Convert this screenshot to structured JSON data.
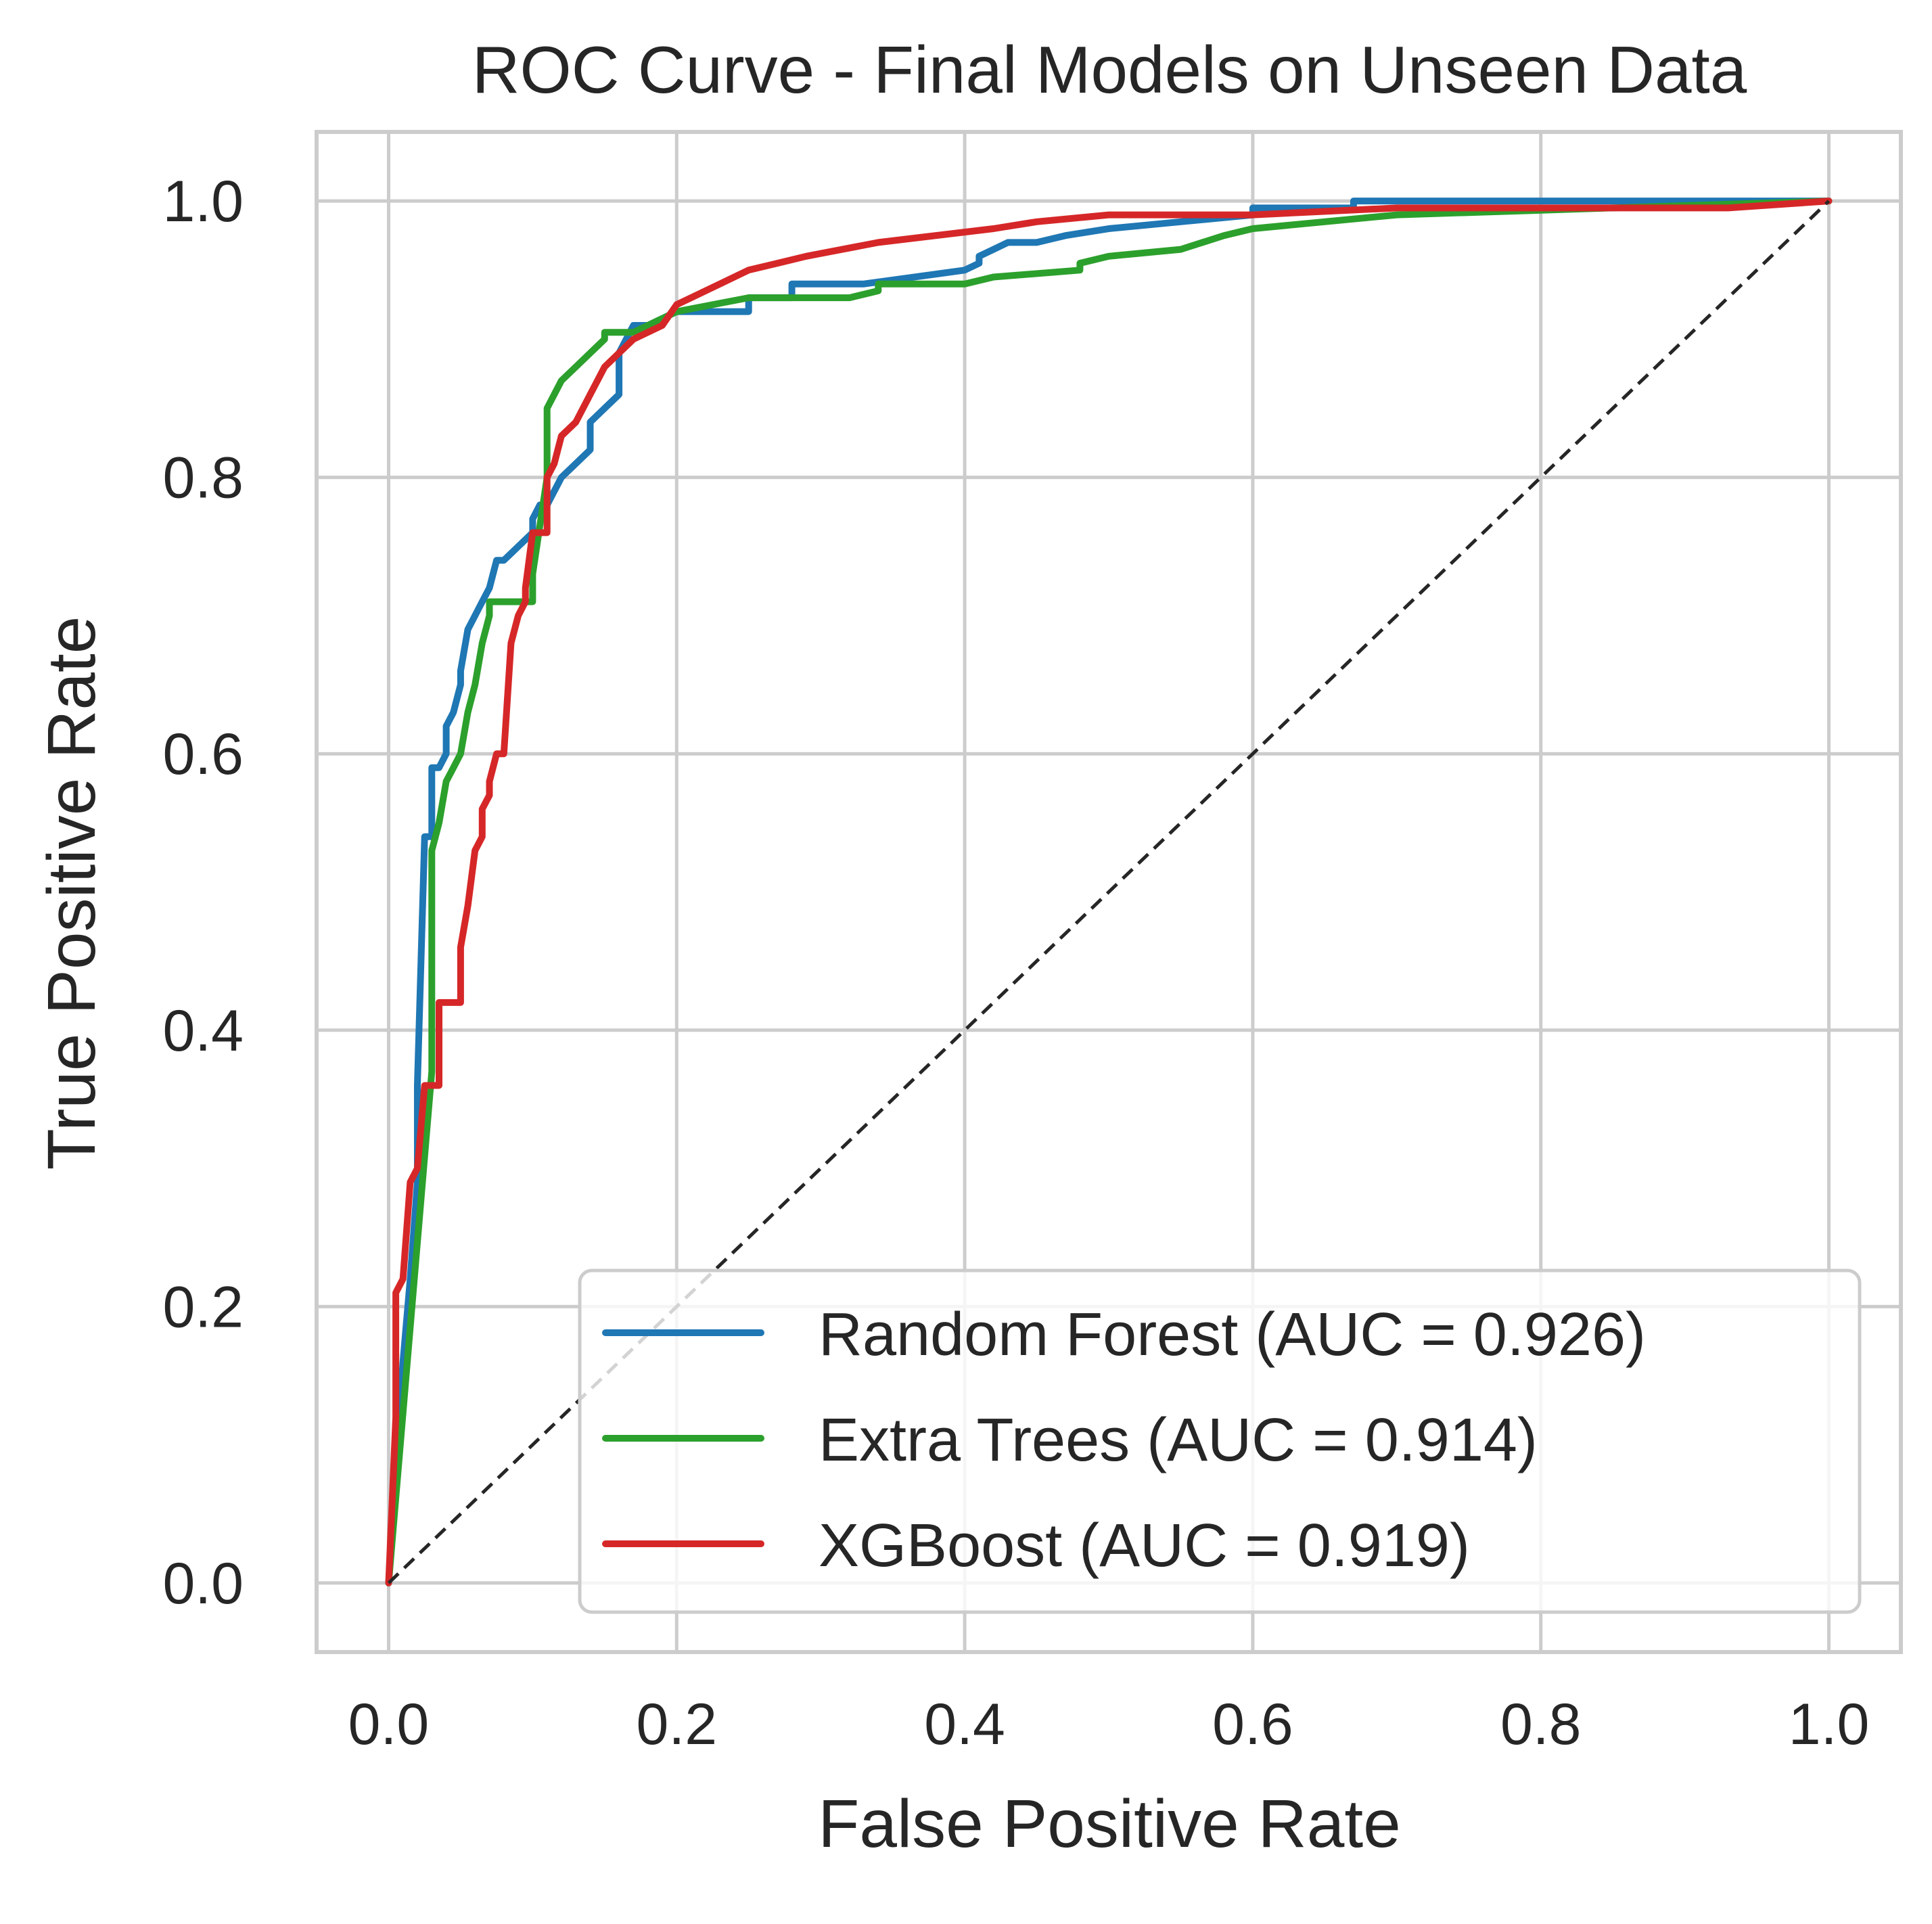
{
  "chart_data": {
    "type": "line",
    "title": "ROC Curve - Final Models on Unseen Data",
    "xlabel": "False Positive Rate",
    "ylabel": "True Positive Rate",
    "xlim": [
      -0.05,
      1.05
    ],
    "ylim": [
      -0.05,
      1.05
    ],
    "xticks": [
      0.0,
      0.2,
      0.4,
      0.6,
      0.8,
      1.0
    ],
    "yticks": [
      0.0,
      0.2,
      0.4,
      0.6,
      0.8,
      1.0
    ],
    "xtick_labels": [
      "0.0",
      "0.2",
      "0.4",
      "0.6",
      "0.8",
      "1.0"
    ],
    "ytick_labels": [
      "0.0",
      "0.2",
      "0.4",
      "0.6",
      "0.8",
      "1.0"
    ],
    "grid": true,
    "legend_position": "lower-right",
    "series": [
      {
        "name": "Random Forest (AUC = 0.926)",
        "color": "#1f77b4",
        "x": [
          0,
          0.005,
          0.01,
          0.015,
          0.02,
          0.02,
          0.025,
          0.03,
          0.03,
          0.035,
          0.04,
          0.04,
          0.045,
          0.05,
          0.05,
          0.055,
          0.06,
          0.065,
          0.07,
          0.075,
          0.08,
          0.09,
          0.1,
          0.1,
          0.105,
          0.11,
          0.115,
          0.12,
          0.13,
          0.14,
          0.14,
          0.15,
          0.16,
          0.16,
          0.17,
          0.18,
          0.2,
          0.22,
          0.25,
          0.25,
          0.28,
          0.28,
          0.33,
          0.4,
          0.41,
          0.41,
          0.42,
          0.43,
          0.45,
          0.47,
          0.5,
          0.55,
          0.6,
          0.6,
          0.67,
          0.67,
          1.0
        ],
        "y": [
          0,
          0.08,
          0.16,
          0.22,
          0.29,
          0.36,
          0.54,
          0.54,
          0.59,
          0.59,
          0.6,
          0.62,
          0.63,
          0.65,
          0.66,
          0.69,
          0.7,
          0.71,
          0.72,
          0.74,
          0.74,
          0.75,
          0.76,
          0.77,
          0.78,
          0.78,
          0.79,
          0.8,
          0.81,
          0.82,
          0.84,
          0.85,
          0.86,
          0.89,
          0.91,
          0.91,
          0.92,
          0.92,
          0.92,
          0.93,
          0.93,
          0.94,
          0.94,
          0.95,
          0.955,
          0.96,
          0.965,
          0.97,
          0.97,
          0.975,
          0.98,
          0.985,
          0.99,
          0.995,
          0.995,
          1.0,
          1.0
        ]
      },
      {
        "name": "Extra Trees (AUC = 0.914)",
        "color": "#2ca02c",
        "x": [
          0,
          0.03,
          0.03,
          0.035,
          0.04,
          0.045,
          0.05,
          0.055,
          0.06,
          0.065,
          0.07,
          0.07,
          0.1,
          0.1,
          0.11,
          0.11,
          0.12,
          0.13,
          0.14,
          0.15,
          0.15,
          0.17,
          0.2,
          0.25,
          0.3,
          0.32,
          0.34,
          0.34,
          0.4,
          0.42,
          0.48,
          0.48,
          0.5,
          0.55,
          0.58,
          0.6,
          0.7,
          1.0
        ],
        "y": [
          0,
          0.37,
          0.53,
          0.55,
          0.58,
          0.59,
          0.6,
          0.63,
          0.65,
          0.68,
          0.7,
          0.71,
          0.71,
          0.73,
          0.8,
          0.85,
          0.87,
          0.88,
          0.89,
          0.9,
          0.905,
          0.905,
          0.92,
          0.93,
          0.93,
          0.93,
          0.935,
          0.94,
          0.94,
          0.945,
          0.95,
          0.955,
          0.96,
          0.965,
          0.975,
          0.98,
          0.99,
          1.0
        ]
      },
      {
        "name": "XGBoost (AUC = 0.919)",
        "color": "#d62728",
        "x": [
          0,
          0.005,
          0.005,
          0.01,
          0.015,
          0.02,
          0.025,
          0.03,
          0.035,
          0.035,
          0.05,
          0.05,
          0.055,
          0.06,
          0.065,
          0.065,
          0.07,
          0.07,
          0.075,
          0.08,
          0.085,
          0.09,
          0.095,
          0.095,
          0.1,
          0.11,
          0.11,
          0.115,
          0.12,
          0.13,
          0.14,
          0.15,
          0.16,
          0.17,
          0.19,
          0.2,
          0.23,
          0.25,
          0.27,
          0.29,
          0.34,
          0.42,
          0.45,
          0.5,
          0.6,
          0.7,
          0.75,
          0.93,
          1.0
        ],
        "y": [
          0,
          0.12,
          0.21,
          0.22,
          0.29,
          0.3,
          0.36,
          0.36,
          0.36,
          0.42,
          0.42,
          0.46,
          0.49,
          0.53,
          0.54,
          0.56,
          0.57,
          0.58,
          0.6,
          0.6,
          0.68,
          0.7,
          0.71,
          0.72,
          0.76,
          0.76,
          0.8,
          0.81,
          0.83,
          0.84,
          0.86,
          0.88,
          0.89,
          0.9,
          0.91,
          0.925,
          0.94,
          0.95,
          0.955,
          0.96,
          0.97,
          0.98,
          0.985,
          0.99,
          0.99,
          0.995,
          0.995,
          0.995,
          1.0
        ]
      },
      {
        "name": "",
        "color": "#262626",
        "dashed": true,
        "x": [
          0,
          1
        ],
        "y": [
          0,
          1
        ]
      }
    ]
  }
}
